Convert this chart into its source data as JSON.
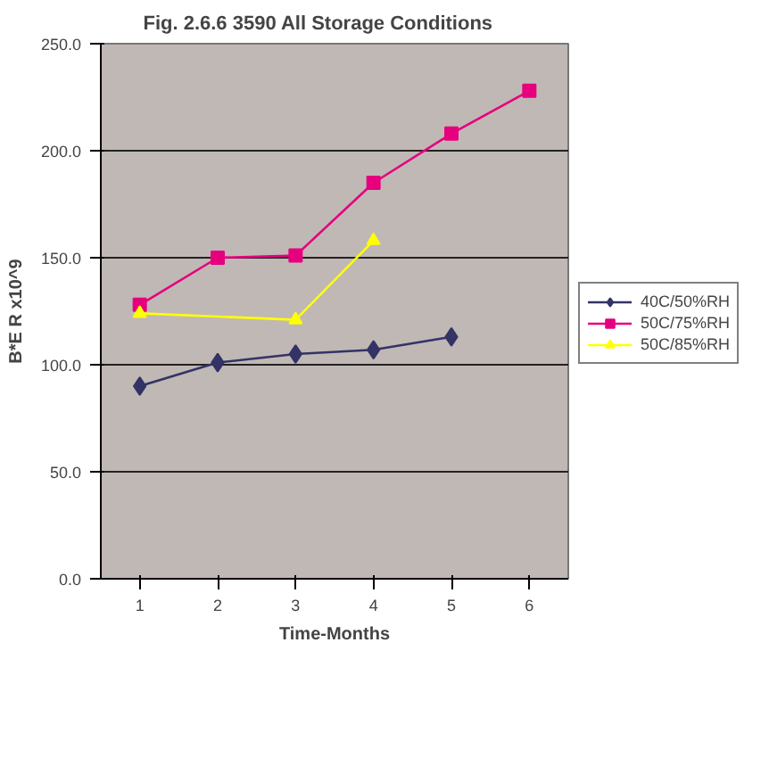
{
  "chart_data": {
    "type": "line",
    "title": "Fig. 2.6.6     3590   All Storage Conditions",
    "xlabel": "Time-Months",
    "ylabel": "B*E R x10^9",
    "categories": [
      "1",
      "2",
      "3",
      "4",
      "5",
      "6"
    ],
    "series": [
      {
        "name": "40C/50%RH",
        "color": "#333366",
        "marker": "diamond",
        "values": [
          90,
          101,
          105,
          107,
          113,
          null
        ]
      },
      {
        "name": "50C/75%RH",
        "color": "#e6007e",
        "marker": "square",
        "values": [
          128,
          150,
          151,
          185,
          208,
          228
        ]
      },
      {
        "name": "50C/85%RH",
        "color": "#ffff00",
        "marker": "triangle",
        "values": [
          124,
          null,
          121,
          158,
          null,
          null
        ]
      }
    ],
    "ylim": [
      0,
      250
    ],
    "yticks": [
      {
        "value": 0,
        "label": "0.0"
      },
      {
        "value": 50,
        "label": "50.0"
      },
      {
        "value": 100,
        "label": "100.0"
      },
      {
        "value": 150,
        "label": "150.0"
      },
      {
        "value": 200,
        "label": "200.0"
      },
      {
        "value": 250,
        "label": "250.0"
      }
    ],
    "grid": "y",
    "legend": "right"
  }
}
